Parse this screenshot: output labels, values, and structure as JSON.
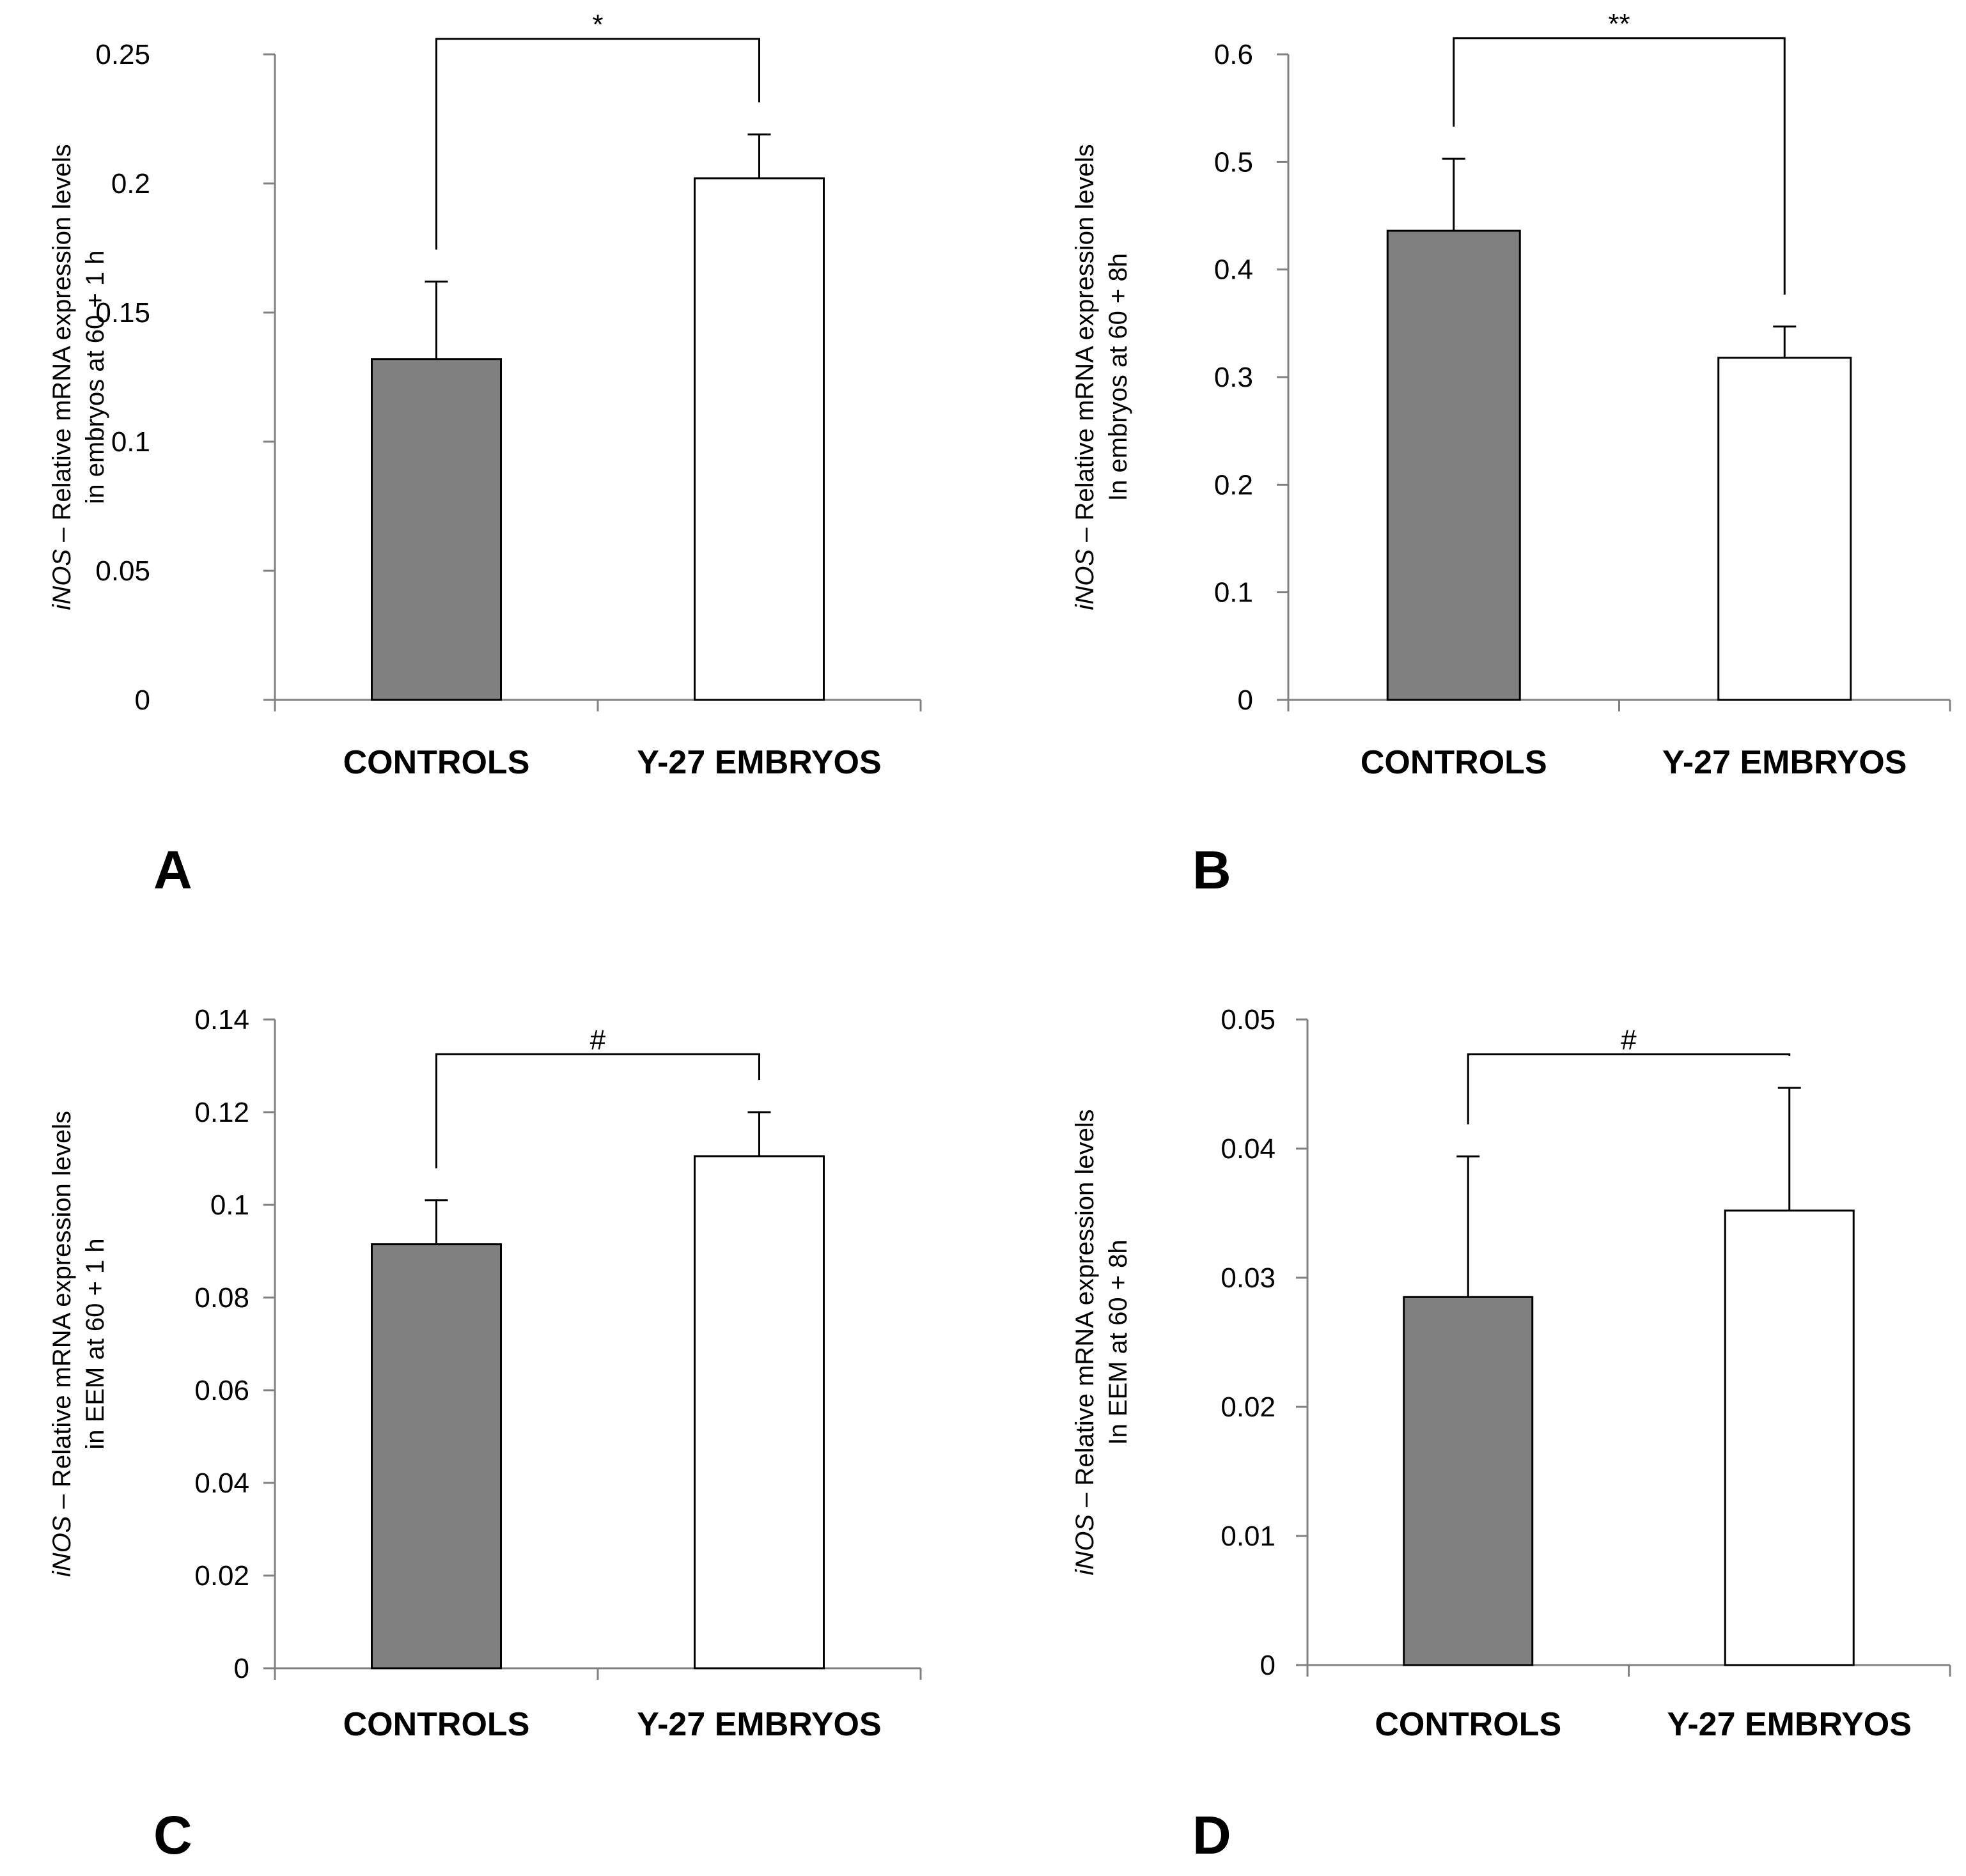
{
  "colors": {
    "control_fill": "#808080",
    "treated_fill": "#ffffff",
    "stroke": "#000000",
    "axis": "#808080"
  },
  "chart_data": [
    {
      "panel": "A",
      "type": "bar",
      "categories": [
        "CONTROLS",
        "Y-27 EMBRYOS"
      ],
      "values": [
        0.132,
        0.202
      ],
      "errors": [
        0.03,
        0.017
      ],
      "ylim": [
        0,
        0.25
      ],
      "yticks": [
        "0",
        "0.05",
        "0.1",
        "0.15",
        "0.2",
        "0.25"
      ],
      "ylabel_gene": "iNOS",
      "ylabel_line1": " – Relative mRNA expression levels",
      "ylabel_line2": "in embryos at 60 + 1 h",
      "significance": "*",
      "bracket_top": 0.256
    },
    {
      "panel": "B",
      "type": "bar",
      "categories": [
        "CONTROLS",
        "Y-27 EMBRYOS"
      ],
      "values": [
        0.436,
        0.318
      ],
      "errors": [
        0.067,
        0.029
      ],
      "ylim": [
        0,
        0.6
      ],
      "yticks": [
        "0",
        "0.1",
        "0.2",
        "0.3",
        "0.4",
        "0.5",
        "0.6"
      ],
      "ylabel_gene": "iNOS",
      "ylabel_line1": " – Relative mRNA expression levels",
      "ylabel_line2": "In embryos at 60 + 8h",
      "significance": "**",
      "bracket_top": 0.615
    },
    {
      "panel": "C",
      "type": "bar",
      "categories": [
        "CONTROLS",
        "Y-27 EMBRYOS"
      ],
      "values": [
        0.0915,
        0.1105
      ],
      "errors": [
        0.0095,
        0.0095
      ],
      "ylim": [
        0,
        0.14
      ],
      "yticks": [
        "0",
        "0.02",
        "0.04",
        "0.06",
        "0.08",
        "0.1",
        "0.12",
        "0.14"
      ],
      "ylabel_gene": "iNOS",
      "ylabel_line1": " – Relative mRNA expression levels",
      "ylabel_line2": "in EEM at 60 + 1 h",
      "significance": "#",
      "bracket_top": 0.1325
    },
    {
      "panel": "D",
      "type": "bar",
      "categories": [
        "CONTROLS",
        "Y-27 EMBRYOS"
      ],
      "values": [
        0.0285,
        0.0352
      ],
      "errors": [
        0.0109,
        0.0095
      ],
      "ylim": [
        0,
        0.05
      ],
      "yticks": [
        "0",
        "0.01",
        "0.02",
        "0.03",
        "0.04",
        "0.05"
      ],
      "ylabel_gene": "iNOS",
      "ylabel_line1": " – Relative mRNA expression levels",
      "ylabel_line2": "In EEM at 60 + 8h",
      "significance": "#",
      "bracket_top": 0.0473
    }
  ]
}
